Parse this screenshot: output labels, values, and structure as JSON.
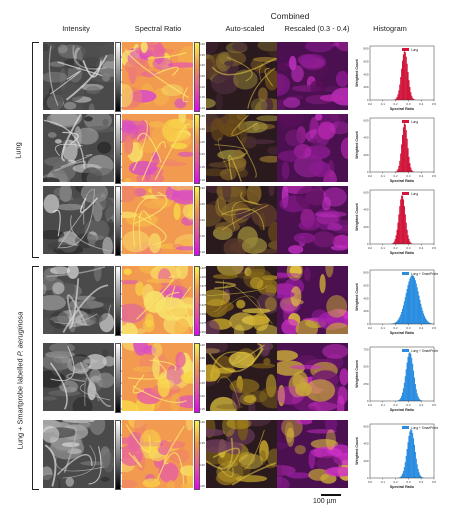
{
  "headers": {
    "intensity": "Intensity",
    "spectral_ratio": "Spectral Ratio",
    "combined": "Combined",
    "auto_scaled": "Auto-scaled",
    "rescaled": "Rescaled (0.3 - 0.4)",
    "histogram": "Histogram"
  },
  "groups": [
    {
      "label_pre": "Lung",
      "label_italic": "",
      "rows": [
        0,
        1,
        2
      ]
    },
    {
      "label_pre": "Lung + Smartprobe labelled ",
      "label_italic": "P. aeruginosa",
      "rows": [
        3,
        4,
        5
      ]
    }
  ],
  "rows": [
    {
      "intensity_ticks": [
        "1.0",
        "0.8",
        "0.6",
        "0.4",
        "0.2",
        "0.0"
      ],
      "ratio_ticks": [
        "0.40",
        "0.35",
        "0.30",
        "0.25",
        "0.20",
        "0.15",
        "0.10"
      ],
      "legend": "Lung",
      "hist_color": "#d1163b",
      "hist_center": 0.27,
      "hist_width": 0.025,
      "y_label": "Weighted Count",
      "x_label": "Spectral Ratio",
      "x_ticks": [
        "0.0",
        "0.1",
        "0.2",
        "0.3",
        "0.4",
        "0.5"
      ],
      "y_ticks": [
        "0",
        "200",
        "400",
        "600",
        "800"
      ]
    },
    {
      "intensity_ticks": [
        "1.0",
        "0.8",
        "0.6",
        "0.4",
        "0.2",
        "0.0"
      ],
      "ratio_ticks": [
        "0.35",
        "0.30",
        "0.25",
        "0.20",
        "0.15",
        "0.10"
      ],
      "legend": "Lung",
      "hist_color": "#d1163b",
      "hist_center": 0.27,
      "hist_width": 0.022,
      "y_label": "Weighted Count",
      "x_label": "Spectral Ratio",
      "x_ticks": [
        "0.0",
        "0.1",
        "0.2",
        "0.3",
        "0.4",
        "0.5"
      ],
      "y_ticks": [
        "0",
        "200",
        "400",
        "600"
      ]
    },
    {
      "intensity_ticks": [
        "1.0",
        "0.8",
        "0.6",
        "0.4",
        "0.2",
        "0.0"
      ],
      "ratio_ticks": [
        "0.30",
        "0.25",
        "0.20",
        "0.15",
        "0.10"
      ],
      "legend": "Lung",
      "hist_color": "#d1163b",
      "hist_center": 0.25,
      "hist_width": 0.025,
      "y_label": "Weighted Count",
      "x_label": "Spectral Ratio",
      "x_ticks": [
        "0.0",
        "0.1",
        "0.2",
        "0.3",
        "0.4",
        "0.5"
      ],
      "y_ticks": [
        "0",
        "200",
        "400",
        "600"
      ]
    },
    {
      "intensity_ticks": [
        "1.0",
        "0.8",
        "0.6",
        "0.4",
        "0.2",
        "0.0"
      ],
      "ratio_ticks": [
        "0.425",
        "0.400",
        "0.375",
        "0.350",
        "0.325",
        "0.300",
        "0.275",
        "0.250"
      ],
      "legend": "Lung + SmartProbe",
      "hist_color": "#2b8de0",
      "hist_center": 0.33,
      "hist_width": 0.05,
      "y_label": "Weighted Count",
      "x_label": "Spectral Ratio",
      "x_ticks": [
        "0.0",
        "0.1",
        "0.2",
        "0.3",
        "0.4",
        "0.5"
      ],
      "y_ticks": [
        "0",
        "200",
        "400",
        "600",
        "800"
      ]
    },
    {
      "intensity_ticks": [
        "1.0",
        "0.8",
        "0.6",
        "0.4",
        "0.2",
        "0.0"
      ],
      "ratio_ticks": [
        "0.40",
        "0.35",
        "0.30",
        "0.25",
        "0.20",
        "0.15"
      ],
      "legend": "Lung + SmartProbe",
      "hist_color": "#2b8de0",
      "hist_center": 0.31,
      "hist_width": 0.03,
      "y_label": "Weighted Count",
      "x_label": "Spectral Ratio",
      "x_ticks": [
        "0.0",
        "0.1",
        "0.2",
        "0.3",
        "0.4",
        "0.5"
      ],
      "y_ticks": [
        "0",
        "250",
        "500",
        "750"
      ]
    },
    {
      "intensity_ticks": [
        "1.0",
        "0.8",
        "0.6",
        "0.4",
        "0.2",
        "0.0"
      ],
      "ratio_ticks": [
        "0.40",
        "0.35",
        "0.30",
        "0.25"
      ],
      "legend": "Lung + SmartProbe",
      "hist_color": "#2b8de0",
      "hist_center": 0.32,
      "hist_width": 0.03,
      "y_label": "Weighted Count",
      "x_label": "Spectral Ratio",
      "x_ticks": [
        "0.0",
        "0.1",
        "0.2",
        "0.3",
        "0.4",
        "0.5"
      ],
      "y_ticks": [
        "0",
        "200",
        "400",
        "600"
      ]
    }
  ],
  "scale_bar": "100 µm"
}
